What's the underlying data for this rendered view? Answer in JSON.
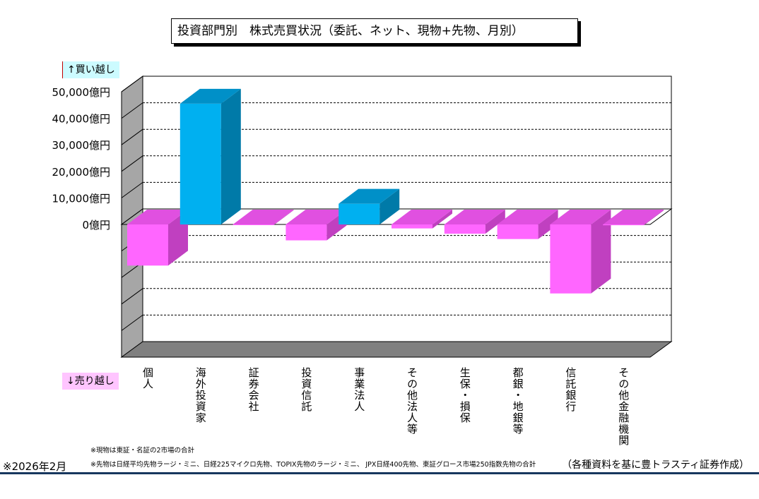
{
  "title": "投資部門別　株式売買状況（委託、ネット、現物+先物、月別）",
  "labels": {
    "buy": "↑買い越し",
    "sell": "↓売り越し"
  },
  "notes": {
    "note1": "※現物は東証・名証の2市場の合計",
    "note2": "※先物は日経平均先物ラージ・ミニ、日経225マイクロ先物、TOPIX先物のラージ・ミニ、 JPX日経400先物、東証グロース市場250指数先物の合計",
    "date": "※2026年2月",
    "source": "（各種資料を基に豊トラスティ証券作成）"
  },
  "colors": {
    "positive_front": "#00b0f0",
    "positive_side": "#007aa8",
    "positive_top": "#0090c8",
    "negative_front": "#ff66ff",
    "negative_side": "#c040c0",
    "negative_top": "#e050e0",
    "wall": "#a6a6a6",
    "floor": "#808080"
  },
  "chart_data": {
    "type": "bar",
    "categories": [
      "個人",
      "海外投資家",
      "証券会社",
      "投資信託",
      "事業法人",
      "その他法人等",
      "生保・損保",
      "都銀・地銀等",
      "信託銀行",
      "その他金融機関"
    ],
    "values": [
      -15500,
      45500,
      -200,
      -6000,
      7800,
      -1500,
      -3500,
      -5500,
      -26000,
      -300
    ],
    "ylim": [
      -50000,
      50000
    ],
    "yticks": [
      50000,
      40000,
      30000,
      20000,
      10000,
      0
    ],
    "ytick_labels": [
      "50,000億円",
      "40,000億円",
      "30,000億円",
      "20,000億円",
      "10,000億円",
      "0億円"
    ],
    "grid": true
  }
}
